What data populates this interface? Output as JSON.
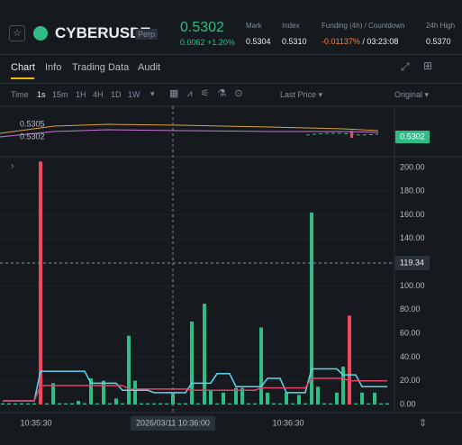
{
  "header": {
    "symbol": "CYBERUSDT",
    "badge": "Perp",
    "price": "0.5302",
    "change": "0.0062",
    "change_pct": "+1.20%",
    "stats": [
      {
        "label": "Mark",
        "value": "0.5304"
      },
      {
        "label": "Index",
        "value": "0.5310"
      },
      {
        "label": "Funding (4h) / Countdown",
        "value": "-0.01137%",
        "countdown": "03:23:08"
      },
      {
        "label": "24h High",
        "value": "0.5370"
      }
    ]
  },
  "tabs": [
    "Chart",
    "Info",
    "Trading Data",
    "Audit"
  ],
  "toolbar": {
    "time": "Time",
    "intervals": [
      "1s",
      "15m",
      "1H",
      "4H",
      "1D",
      "1W"
    ],
    "price_type": "Last Price",
    "view": "Original"
  },
  "price_pane": {
    "labels": [
      "0.5305",
      "0.5302"
    ],
    "last_price": "0.5302"
  },
  "volume": {
    "ylim": [
      0,
      206
    ],
    "yticks": [
      {
        "value": 0,
        "label": "0.00"
      },
      {
        "value": 20,
        "label": "20.00"
      },
      {
        "value": 40,
        "label": "40.00"
      },
      {
        "value": 60,
        "label": "60.00"
      },
      {
        "value": 80,
        "label": "80.00"
      },
      {
        "value": 100,
        "label": "100.00"
      },
      {
        "value": 120,
        "label": "120.00"
      },
      {
        "value": 140,
        "label": "140.00"
      },
      {
        "value": 160,
        "label": "160.00"
      },
      {
        "value": 180,
        "label": "180.00"
      },
      {
        "value": 200,
        "label": "200.00"
      }
    ],
    "values": [
      1,
      1,
      1,
      1,
      1,
      1,
      205,
      1,
      18,
      1,
      1,
      1,
      3,
      1,
      22,
      1,
      20,
      1,
      5,
      1,
      58,
      20,
      1,
      1,
      1,
      1,
      1,
      10,
      1,
      1,
      70,
      1,
      85,
      12,
      1,
      10,
      1,
      14,
      14,
      1,
      1,
      65,
      10,
      1,
      1,
      10,
      1,
      8,
      1,
      162,
      15,
      1,
      1,
      10,
      32,
      75,
      1,
      10,
      1,
      10,
      1,
      1
    ],
    "colors": [
      "#2ebd85",
      "#2ebd85",
      "#2ebd85",
      "#2ebd85",
      "#2ebd85",
      "#2ebd85",
      "#f6465d",
      "#2ebd85",
      "#2ebd85",
      "#2ebd85",
      "#2ebd85",
      "#2ebd85",
      "#2ebd85",
      "#2ebd85",
      "#2ebd85",
      "#2ebd85",
      "#2ebd85",
      "#2ebd85",
      "#2ebd85",
      "#2ebd85",
      "#2ebd85",
      "#2ebd85",
      "#2ebd85",
      "#2ebd85",
      "#2ebd85",
      "#2ebd85",
      "#2ebd85",
      "#2ebd85",
      "#2ebd85",
      "#2ebd85",
      "#2ebd85",
      "#2ebd85",
      "#2ebd85",
      "#2ebd85",
      "#2ebd85",
      "#2ebd85",
      "#2ebd85",
      "#2ebd85",
      "#2ebd85",
      "#2ebd85",
      "#2ebd85",
      "#2ebd85",
      "#2ebd85",
      "#2ebd85",
      "#2ebd85",
      "#2ebd85",
      "#2ebd85",
      "#2ebd85",
      "#2ebd85",
      "#2ebd85",
      "#2ebd85",
      "#2ebd85",
      "#2ebd85",
      "#2ebd85",
      "#2ebd85",
      "#f6465d",
      "#2ebd85",
      "#2ebd85",
      "#2ebd85",
      "#2ebd85",
      "#2ebd85",
      "#2ebd85"
    ],
    "lines": [
      {
        "color": "#5ad8f0",
        "values": [
          3,
          3,
          3,
          3,
          3,
          3,
          28,
          28,
          28,
          28,
          28,
          28,
          28,
          28,
          18,
          18,
          18,
          18,
          18,
          12,
          12,
          12,
          12,
          12,
          10,
          10,
          10,
          10,
          10,
          10,
          18,
          18,
          18,
          18,
          26,
          26,
          26,
          15,
          15,
          15,
          15,
          15,
          22,
          22,
          22,
          10,
          10,
          10,
          10,
          30,
          30,
          30,
          30,
          30,
          25,
          25,
          25,
          15,
          15,
          15,
          15,
          15
        ]
      },
      {
        "color": "#e0446a",
        "values": [
          3,
          3,
          3,
          3,
          3,
          3,
          16,
          16,
          16,
          16,
          16,
          16,
          16,
          16,
          16,
          16,
          16,
          16,
          16,
          16,
          13,
          13,
          13,
          13,
          13,
          13,
          13,
          13,
          13,
          13,
          12,
          12,
          12,
          12,
          12,
          12,
          12,
          12,
          12,
          12,
          12,
          14,
          14,
          14,
          14,
          14,
          14,
          14,
          14,
          22,
          22,
          22,
          22,
          22,
          22,
          20,
          20,
          20,
          20,
          20,
          20,
          20
        ]
      }
    ],
    "crosshair": 119.34,
    "xticks": [
      "10:35:30",
      "2026/03/11 10:36:00",
      "10:36:30"
    ]
  }
}
